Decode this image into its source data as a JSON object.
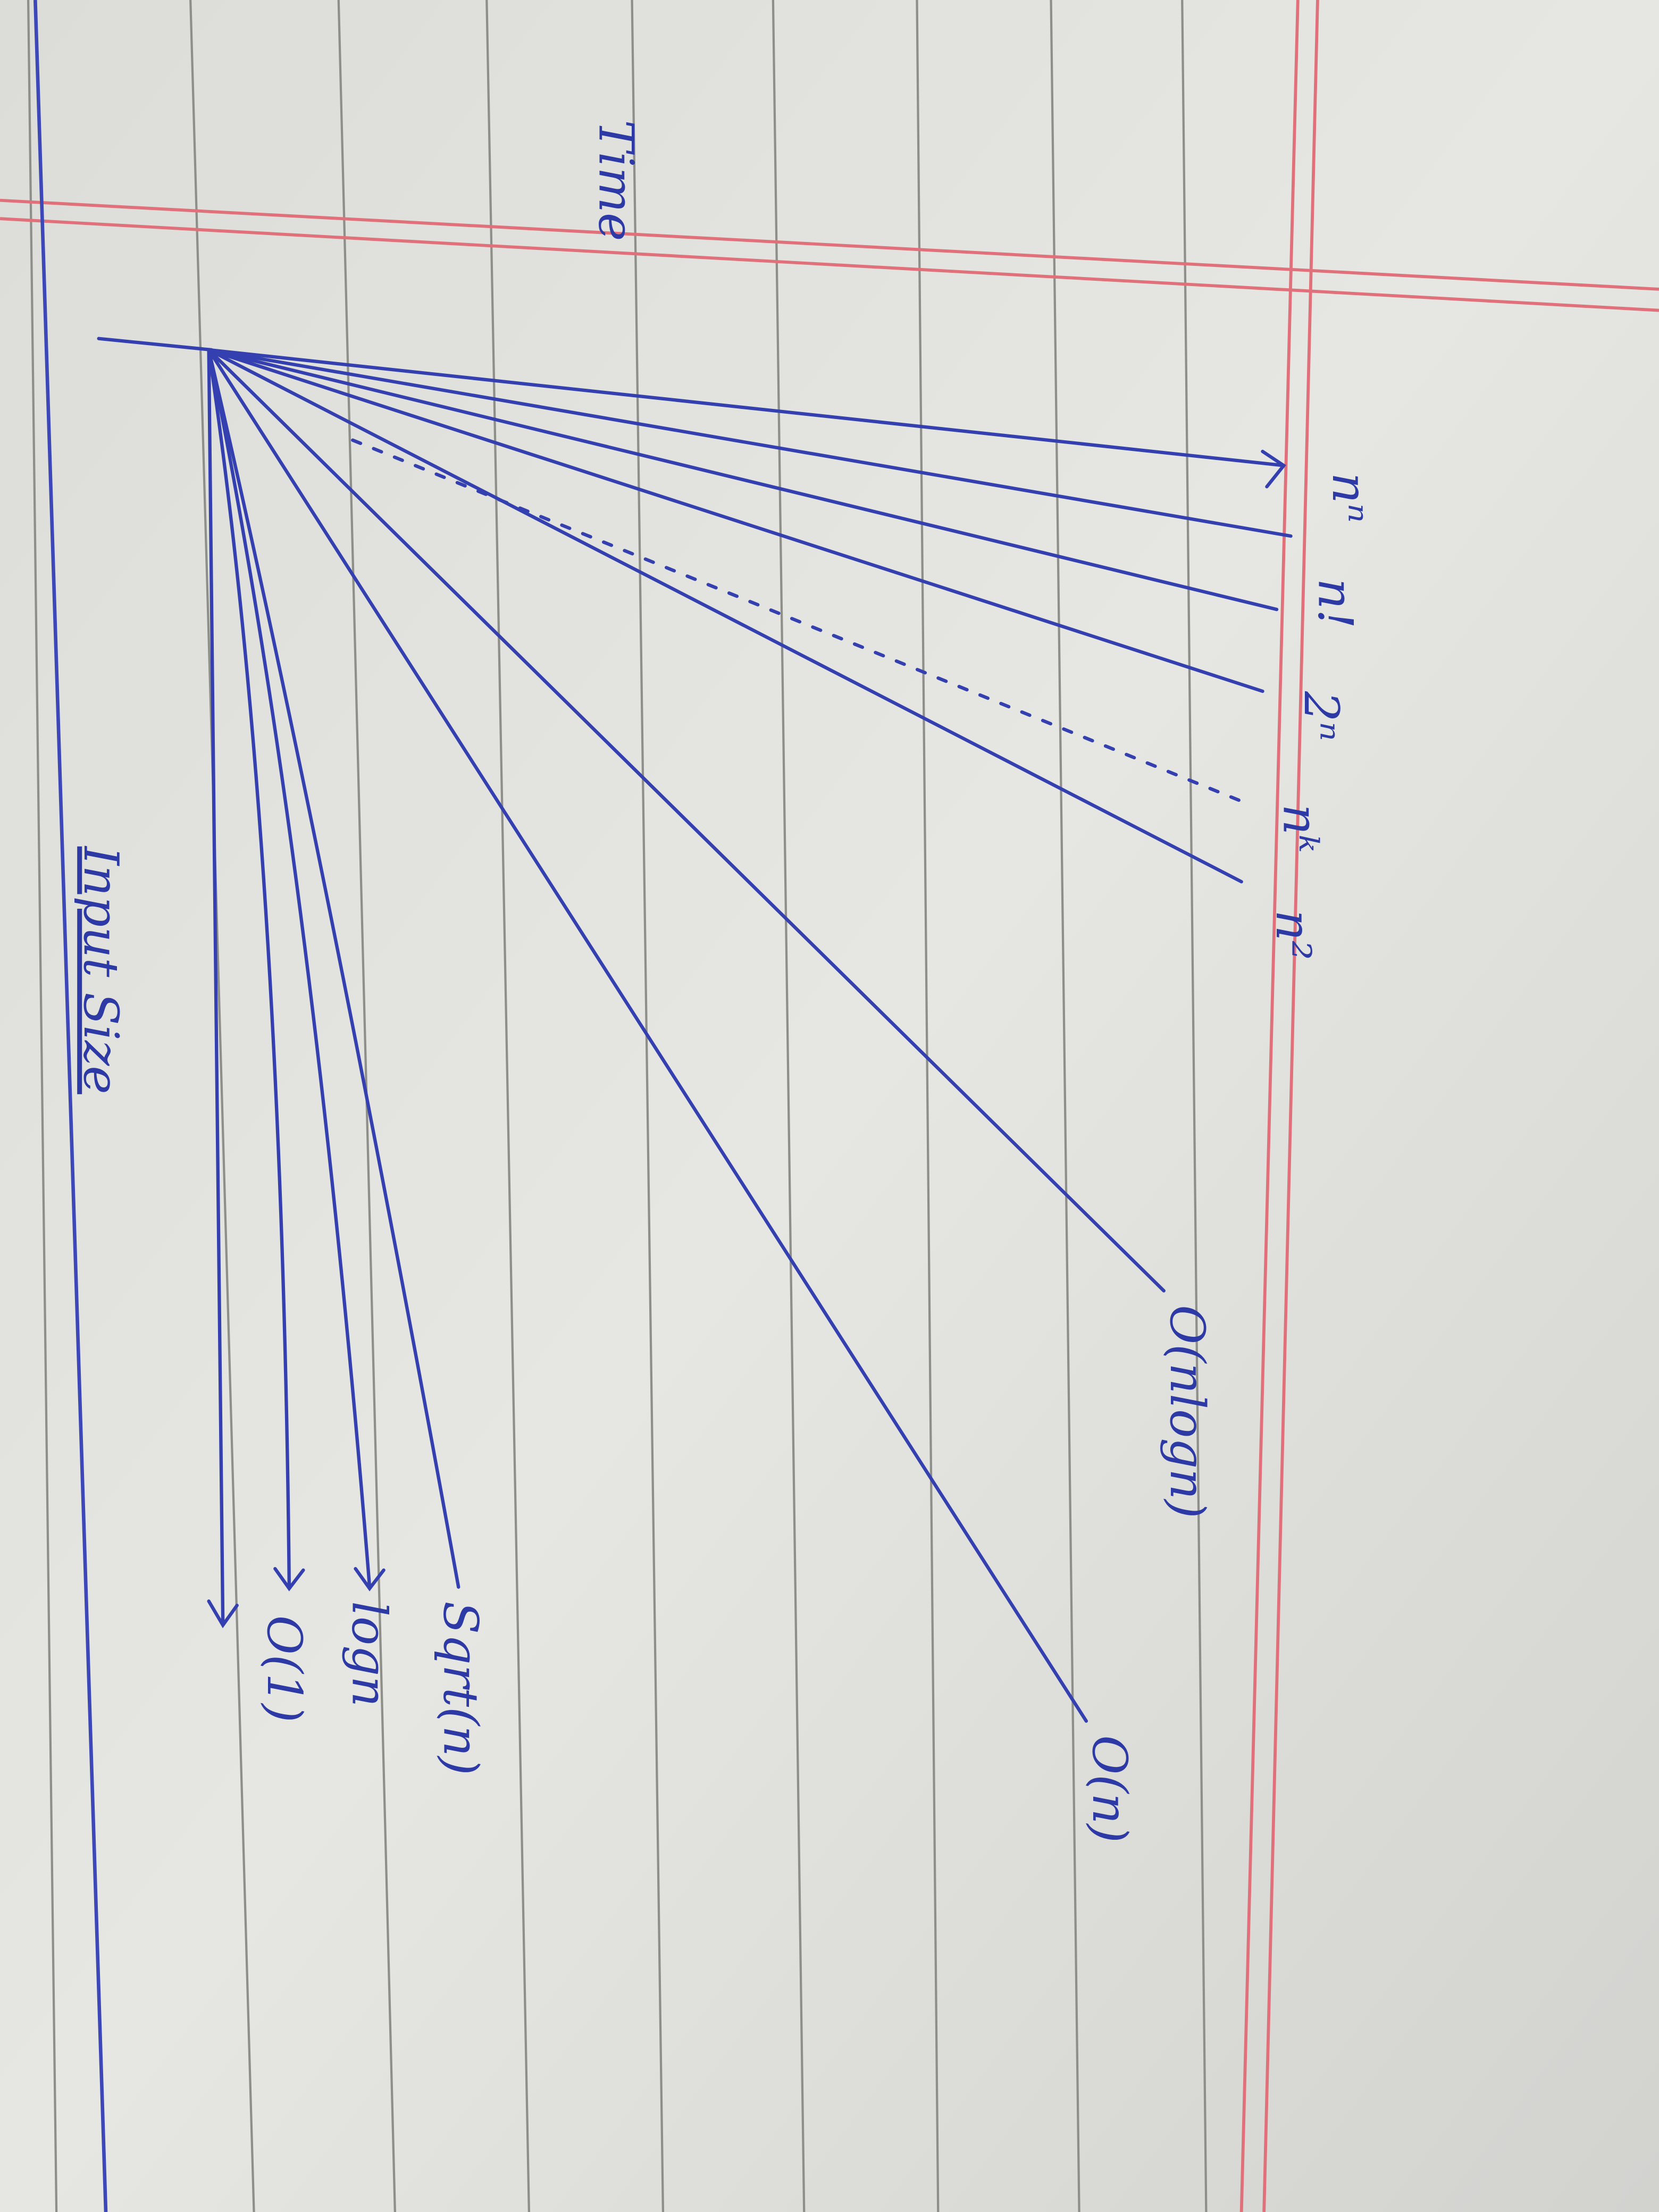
{
  "axes": {
    "y_label": "Time",
    "x_label": "Input Size"
  },
  "curves": [
    {
      "label": "nⁿ"
    },
    {
      "label": "n!"
    },
    {
      "label": "2ⁿ"
    },
    {
      "label": "nᵏ"
    },
    {
      "label": "n²"
    },
    {
      "label": "O(nlogn)"
    },
    {
      "label": "O(n)"
    },
    {
      "label": "Sqrt(n)"
    },
    {
      "label": "logn"
    },
    {
      "label": "O(1)"
    }
  ]
}
